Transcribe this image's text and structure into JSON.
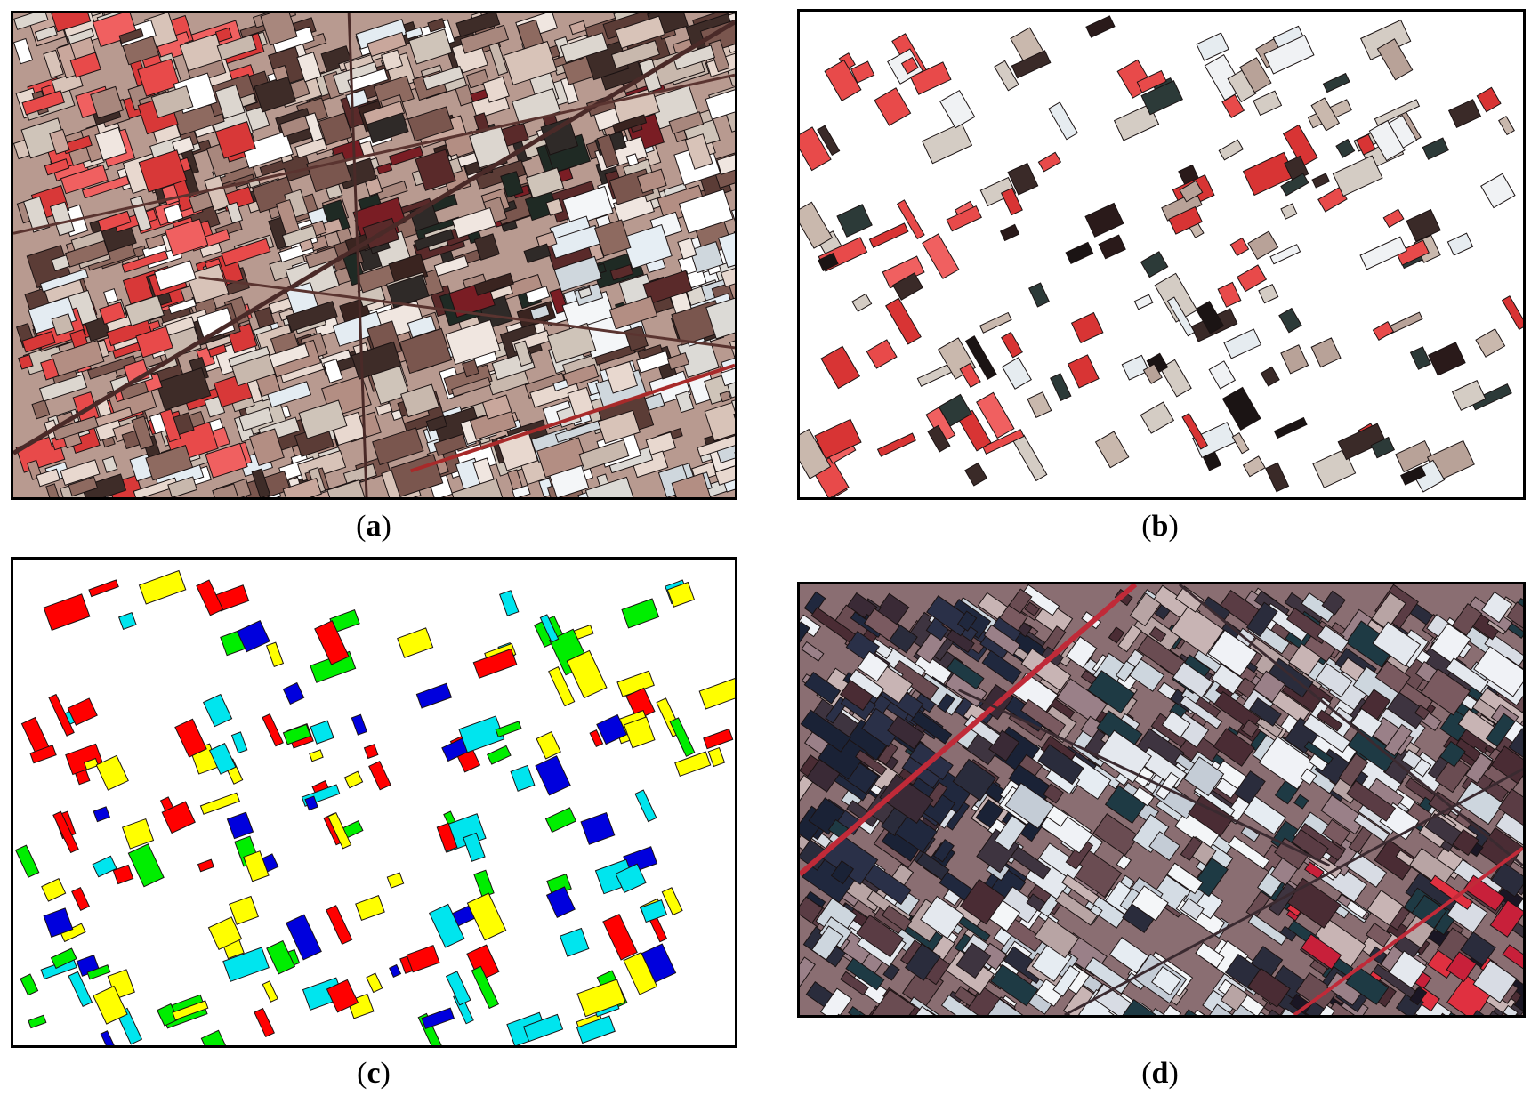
{
  "panels": [
    {
      "id": "a",
      "caption": "a",
      "description_icon": "segmented-satellite-image-icon"
    },
    {
      "id": "b",
      "caption": "b",
      "description_icon": "selected-segments-image-icon"
    },
    {
      "id": "c",
      "caption": "c",
      "description_icon": "classified-segments-map-icon"
    },
    {
      "id": "d",
      "caption": "d",
      "description_icon": "segmented-satellite-image-icon"
    }
  ],
  "palette": {
    "class_red": "#ff0000",
    "class_green": "#00ee00",
    "class_blue": "#0000dd",
    "class_yellow": "#ffff00",
    "class_cyan": "#00e5ee"
  }
}
